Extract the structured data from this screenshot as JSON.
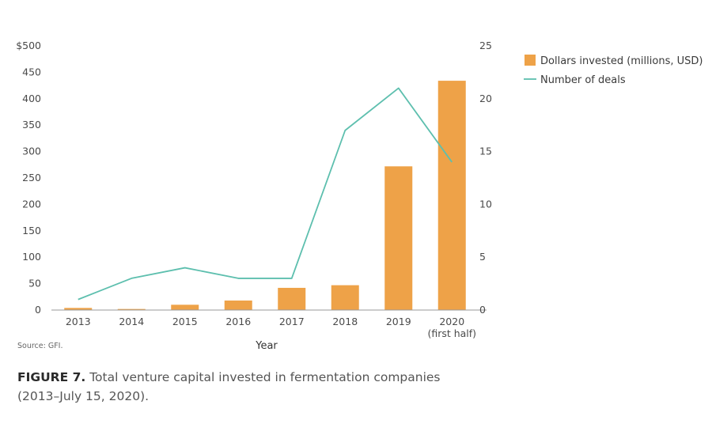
{
  "chart_data": {
    "type": "bar",
    "categories": [
      "2013",
      "2014",
      "2015",
      "2016",
      "2017",
      "2018",
      "2019",
      "2020"
    ],
    "category_sublabels": [
      "",
      "",
      "",
      "",
      "",
      "",
      "",
      "(first half)"
    ],
    "xlabel": "Year",
    "y_left": {
      "ticks": [
        "$500",
        "450",
        "400",
        "350",
        "300",
        "250",
        "200",
        "150",
        "100",
        "50",
        "0"
      ],
      "range": [
        0,
        500
      ]
    },
    "y_right": {
      "ticks": [
        "25",
        "20",
        "15",
        "10",
        "5",
        "0"
      ],
      "range": [
        0,
        25
      ]
    },
    "series": [
      {
        "name": "Dollars invested (millions, USD)",
        "type": "bar",
        "axis": "left",
        "values": [
          4,
          2,
          10,
          18,
          42,
          47,
          272,
          434
        ]
      },
      {
        "name": "Number of deals",
        "type": "line",
        "axis": "right",
        "values": [
          1,
          3,
          4,
          3,
          3,
          17,
          21,
          14
        ]
      }
    ],
    "colors": {
      "bar": "#eea248",
      "line": "#5dbfae",
      "axis": "#9a9a9a",
      "text": "#4a4a4a"
    },
    "grid": false,
    "legend_position": "top-right"
  },
  "source": "Source: GFI.",
  "caption": {
    "label": "FIGURE 7.",
    "text": " Total venture capital invested in fermentation companies (2013–July 15, 2020)."
  }
}
